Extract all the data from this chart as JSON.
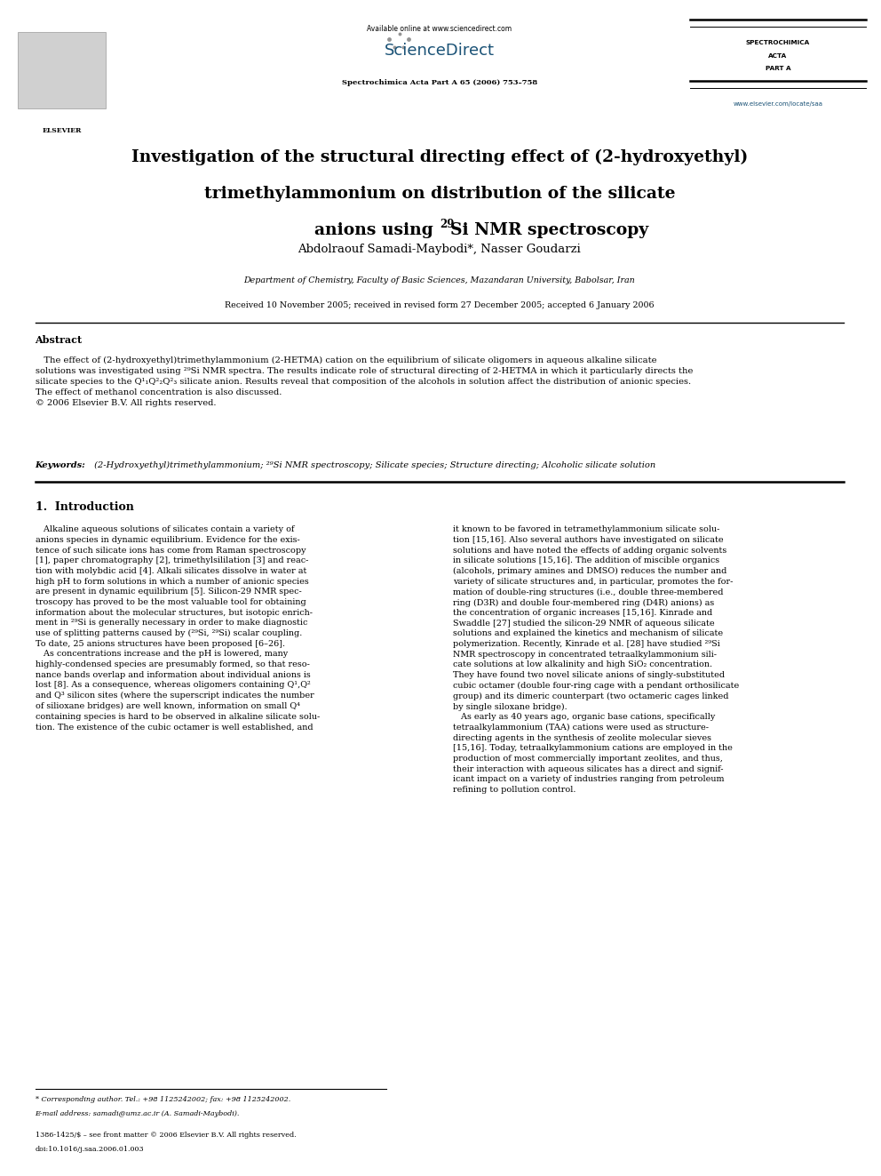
{
  "bg_color": "#ffffff",
  "page_width": 9.92,
  "page_height": 13.23,
  "header": {
    "available_online": "Available online at www.sciencedirect.com",
    "journal_name_bold": "Spectrochimica Acta Part A 65 (2006) 753–758",
    "sciencedirect_text": "ScienceDirect",
    "journal_right_line1": "SPECTROCHIMICA",
    "journal_right_line2": "ACTA",
    "journal_right_line3": "PART A",
    "website": "www.elsevier.com/locate/saa"
  },
  "title_line1": "Investigation of the structural directing effect of (2-hydroxyethyl)",
  "title_line2": "trimethylammonium on distribution of the silicate",
  "title_line3_pre": "anions using ",
  "title_line3_sup": "29",
  "title_line3_post": "Si NMR spectroscopy",
  "authors": "Abdolraouf Samadi-Maybodi*, Nasser Goudarzi",
  "affiliation": "Department of Chemistry, Faculty of Basic Sciences, Mazandaran University, Babolsar, Iran",
  "received": "Received 10 November 2005; received in revised form 27 December 2005; accepted 6 January 2006",
  "abstract_heading": "Abstract",
  "keywords_label": "Keywords:",
  "keywords_text": " (2-Hydroxyethyl)trimethylammonium; ²⁹Si NMR spectroscopy; Silicate species; Structure directing; Alcoholic silicate solution",
  "section1_heading": "1.  Introduction",
  "footnote_star": "* Corresponding author. Tel.: +98 1125242002; fax: +98 1125242002.",
  "footnote_email": "E-mail address: samadi@umz.ac.ir (A. Samadi-Maybodi).",
  "footer_issn": "1386-1425/$ – see front matter © 2006 Elsevier B.V. All rights reserved.",
  "footer_doi": "doi:10.1016/j.saa.2006.01.003"
}
